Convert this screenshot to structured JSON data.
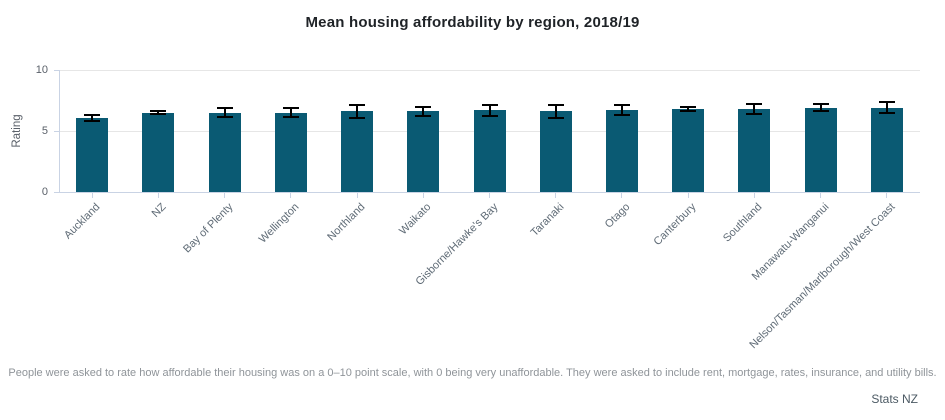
{
  "footer": {
    "note": "People were asked to rate how affordable their housing was on a 0–10 point scale, with 0 being very unaffordable. They were asked to include rent, mortgage, rates, insurance, and utility bills.",
    "source": "Stats NZ"
  },
  "colors": {
    "bar": "#0a5a73",
    "error_bar": "#000000",
    "axis_line": "#c9d3e4",
    "gridline": "#e6e6e6",
    "tick_label": "#5a6069",
    "category_label": "#5f6b76",
    "title_text": "#1f2327",
    "note_text": "#8f9499",
    "source_text": "#4c5a64",
    "background": "#ffffff"
  },
  "chart_data": {
    "type": "bar",
    "title": "Mean housing affordability by region, 2018/19",
    "xlabel": "",
    "ylabel": "Rating",
    "ylim": [
      0,
      10
    ],
    "yticks": [
      0,
      5,
      10
    ],
    "grid": true,
    "legend": false,
    "categories": [
      "Auckland",
      "NZ",
      "Bay of Plenty",
      "Wellington",
      "Northland",
      "Waikato",
      "Gisborne/Hawke's Bay",
      "Taranaki",
      "Otago",
      "Canterbury",
      "Southland",
      "Manawatu-Wanganui",
      "Nelson/Tasman/Marlborough/West Coast"
    ],
    "values": [
      6.1,
      6.5,
      6.5,
      6.5,
      6.6,
      6.6,
      6.7,
      6.6,
      6.7,
      6.8,
      6.8,
      6.9,
      6.9
    ],
    "error_bars": [
      0.25,
      0.1,
      0.35,
      0.35,
      0.55,
      0.4,
      0.45,
      0.5,
      0.4,
      0.2,
      0.4,
      0.3,
      0.45
    ]
  }
}
